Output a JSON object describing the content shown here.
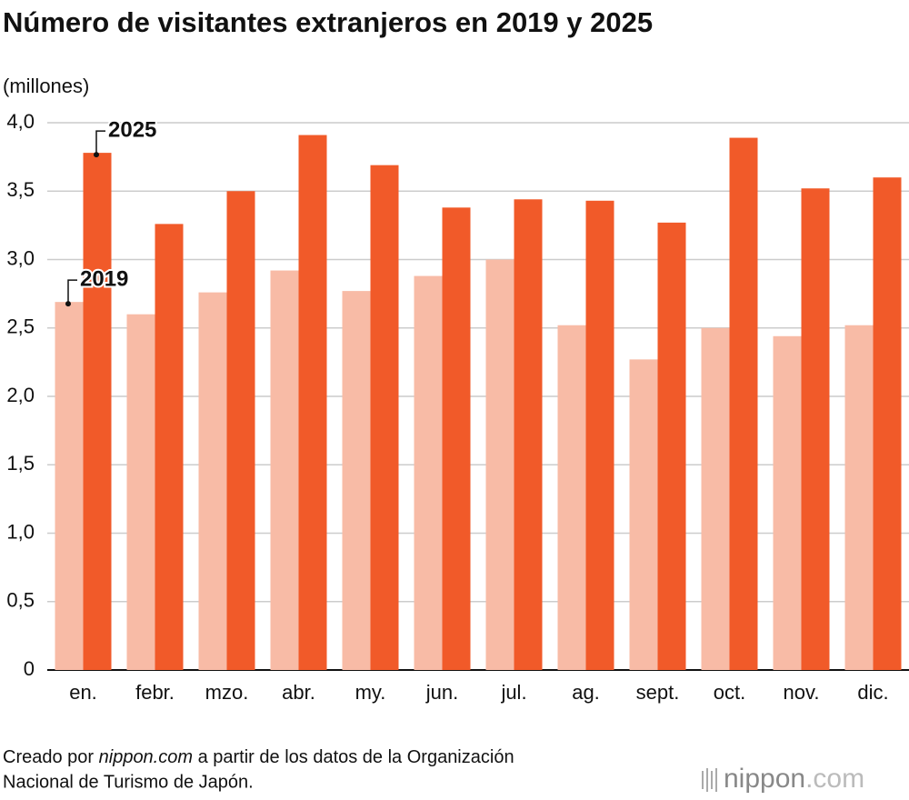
{
  "chart_data": {
    "type": "bar",
    "title": "Número de visitantes extranjeros en 2019 y 2025",
    "y_label": "(millones)",
    "categories": [
      "en.",
      "febr.",
      "mzo.",
      "abr.",
      "my.",
      "jun.",
      "jul.",
      "ag.",
      "sept.",
      "oct.",
      "nov.",
      "dic."
    ],
    "series": [
      {
        "name": "2019",
        "color": "#f8bba6",
        "values": [
          2.69,
          2.6,
          2.76,
          2.92,
          2.77,
          2.88,
          3.0,
          2.52,
          2.27,
          2.5,
          2.44,
          2.52
        ]
      },
      {
        "name": "2025",
        "color": "#f15a29",
        "values": [
          3.78,
          3.26,
          3.5,
          3.91,
          3.69,
          3.38,
          3.44,
          3.43,
          3.27,
          3.89,
          3.52,
          3.6
        ]
      }
    ],
    "ylim": [
      0,
      4
    ],
    "yticks": [
      0,
      {
        "value": 0.5,
        "label": "0,5"
      },
      {
        "value": 1,
        "label": "1,0"
      },
      {
        "value": 1.5,
        "label": "1,5"
      },
      {
        "value": 2,
        "label": "2,0"
      },
      {
        "value": 2.5,
        "label": "2,5"
      },
      {
        "value": 3,
        "label": "3,0"
      },
      {
        "value": 3.5,
        "label": "3,5"
      },
      {
        "value": 4,
        "label": "4,0"
      }
    ],
    "grid": true
  },
  "source": {
    "prefix": "Creado por ",
    "site": "nippon.com",
    "rest": " a partir de los datos de la Organización",
    "line2": "Nacional de Turismo de Japón."
  },
  "logo": {
    "name": "nippon",
    "tld": ".com"
  }
}
